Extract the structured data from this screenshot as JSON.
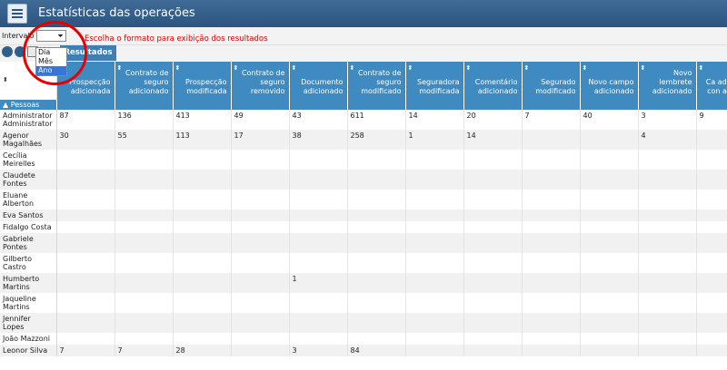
{
  "app": {
    "title": "Estatísticas das operações",
    "icon": "stats-report-icon"
  },
  "toolbar": {
    "intervalo_label": "Intervalo :",
    "intervalo_value": "",
    "hint": "Escolha o formato para exibição dos resultados"
  },
  "dropdown": {
    "options": [
      "Dia",
      "Mês",
      "Ano"
    ],
    "selected": "Ano"
  },
  "tabs": {
    "active": "Resultados"
  },
  "grid": {
    "group_label": "Pessoas",
    "columns": [
      "Prospecção adicionada",
      "Contrato de seguro adicionado",
      "Prospecção modificada",
      "Contrato de seguro removido",
      "Documento adicionado",
      "Contrato de seguro modificado",
      "Seguradora modificada",
      "Comentário adicionado",
      "Segurado modificado",
      "Novo campo adicionado",
      "Novo lembrete adicionado",
      "Ca adicio con alter"
    ],
    "rows": [
      {
        "name": "Administrator Administrator",
        "values": [
          "87",
          "136",
          "413",
          "49",
          "43",
          "611",
          "14",
          "20",
          "7",
          "40",
          "3",
          "9"
        ]
      },
      {
        "name": "Agenor Magalhães",
        "values": [
          "30",
          "55",
          "113",
          "17",
          "38",
          "258",
          "1",
          "14",
          "",
          "",
          "4",
          ""
        ]
      },
      {
        "name": "Cecília Meirelles",
        "values": [
          "",
          "",
          "",
          "",
          "",
          "",
          "",
          "",
          "",
          "",
          "",
          ""
        ]
      },
      {
        "name": "Claudete Fontes",
        "values": [
          "",
          "",
          "",
          "",
          "",
          "",
          "",
          "",
          "",
          "",
          "",
          ""
        ]
      },
      {
        "name": "Eluane Alberton",
        "values": [
          "",
          "",
          "",
          "",
          "",
          "",
          "",
          "",
          "",
          "",
          "",
          ""
        ]
      },
      {
        "name": "Eva Santos",
        "values": [
          "",
          "",
          "",
          "",
          "",
          "",
          "",
          "",
          "",
          "",
          "",
          ""
        ]
      },
      {
        "name": "Fidalgo Costa",
        "values": [
          "",
          "",
          "",
          "",
          "",
          "",
          "",
          "",
          "",
          "",
          "",
          ""
        ]
      },
      {
        "name": "Gabriele Pontes",
        "values": [
          "",
          "",
          "",
          "",
          "",
          "",
          "",
          "",
          "",
          "",
          "",
          ""
        ]
      },
      {
        "name": "Gilberto Castro",
        "values": [
          "",
          "",
          "",
          "",
          "",
          "",
          "",
          "",
          "",
          "",
          "",
          ""
        ]
      },
      {
        "name": "Humberto Martins",
        "values": [
          "",
          "",
          "",
          "",
          "1",
          "",
          "",
          "",
          "",
          "",
          "",
          ""
        ]
      },
      {
        "name": "Jaqueline Martins",
        "values": [
          "",
          "",
          "",
          "",
          "",
          "",
          "",
          "",
          "",
          "",
          "",
          ""
        ]
      },
      {
        "name": "Jennifer Lopes",
        "values": [
          "",
          "",
          "",
          "",
          "",
          "",
          "",
          "",
          "",
          "",
          "",
          ""
        ]
      },
      {
        "name": "João Mazzoni",
        "values": [
          "",
          "",
          "",
          "",
          "",
          "",
          "",
          "",
          "",
          "",
          "",
          ""
        ]
      },
      {
        "name": "Leonor Silva",
        "values": [
          "7",
          "7",
          "28",
          "",
          "3",
          "84",
          "",
          "",
          "",
          "",
          "",
          ""
        ]
      }
    ]
  },
  "colors": {
    "header": "#2c5580",
    "column_header": "#3f8ac0",
    "hint": "#e00000",
    "annotation": "#e60000"
  }
}
